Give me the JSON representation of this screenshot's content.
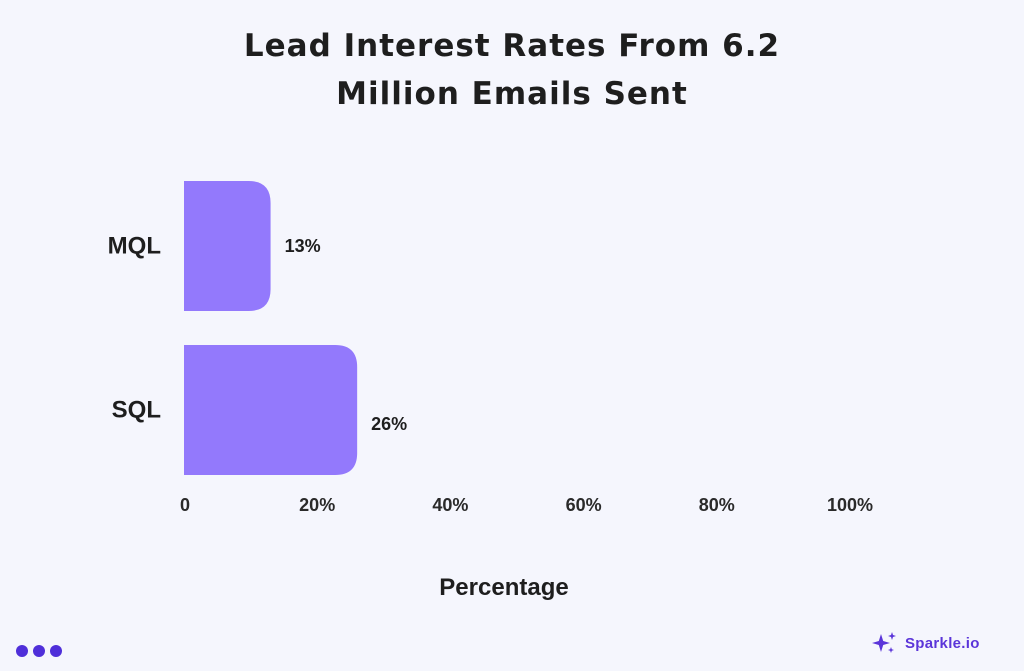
{
  "title_lines": [
    "Lead Interest Rates From 6.2",
    "Million Emails Sent"
  ],
  "chart_data": {
    "type": "bar",
    "orientation": "horizontal",
    "title": "Lead Interest Rates From 6.2 Million Emails Sent",
    "categories": [
      "MQL",
      "SQL"
    ],
    "values": [
      13,
      26
    ],
    "value_labels": [
      "13%",
      "26%"
    ],
    "xlabel": "Percentage",
    "ylabel": "",
    "xlim": [
      0,
      100
    ],
    "x_ticks": [
      0,
      20,
      40,
      60,
      80,
      100
    ],
    "x_tick_labels": [
      "0",
      "20%",
      "40%",
      "60%",
      "80%",
      "100%"
    ],
    "grid": false,
    "bar_color": "#9379fc"
  },
  "footer": {
    "brand": "Sparkle.io",
    "brand_color": "#5b35d9",
    "dot_color": "#4f2fd9"
  }
}
